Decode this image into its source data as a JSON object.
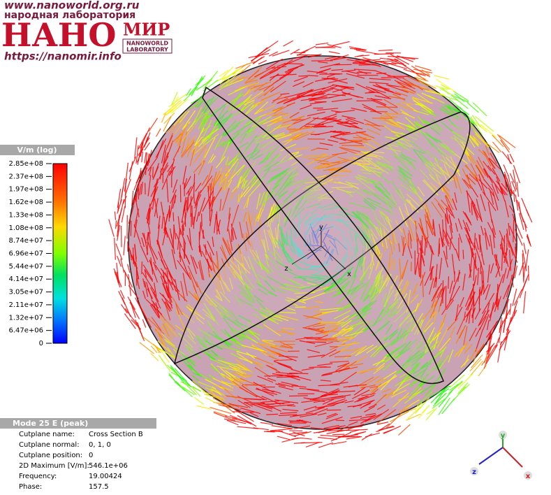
{
  "watermark": {
    "url": "www.nanoworld.org.ru",
    "subtitle": "народная лаборатория",
    "logo": "НАНО",
    "logo_mir": "МИР",
    "logo_small": [
      "NANOWORLD",
      "LABORATORY"
    ],
    "url2": "https://nanomir.info"
  },
  "colorbar": {
    "title": "V/m (log)",
    "labels": [
      "2.85e+08",
      "2.37e+08",
      "1.97e+08",
      "1.62e+08",
      "1.33e+08",
      "1.08e+08",
      "8.74e+07",
      "6.96e+07",
      "5.44e+07",
      "4.14e+07",
      "3.05e+07",
      "2.11e+07",
      "1.32e+07",
      "6.47e+06",
      "0"
    ]
  },
  "info": {
    "title": "Mode 25 E (peak)",
    "rows": [
      [
        "Cutplane name:",
        "Cross Section B"
      ],
      [
        "Cutplane normal:",
        "0, 1, 0"
      ],
      [
        "Cutplane position:",
        "0"
      ],
      [
        "2D Maximum [V/m]:",
        "546.1e+06"
      ],
      [
        "Frequency:",
        "19.00424"
      ],
      [
        "Phase:",
        "157.5"
      ]
    ]
  },
  "axes": {
    "x": "x",
    "y": "y",
    "z": "z"
  }
}
